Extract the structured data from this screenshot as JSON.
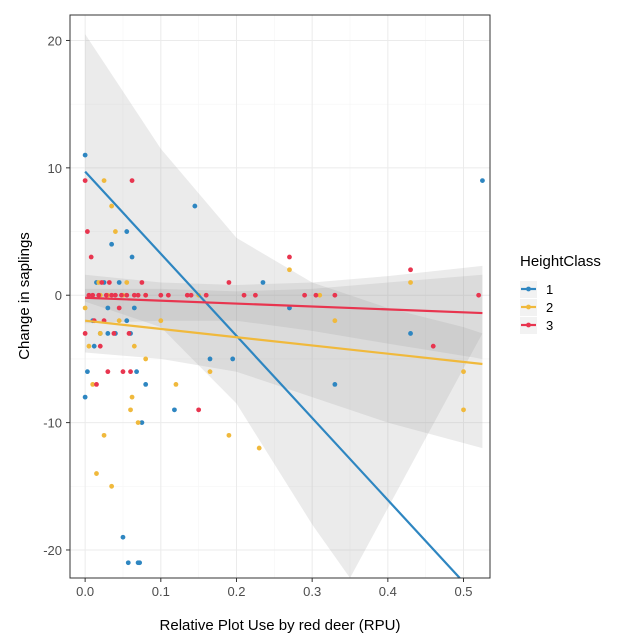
{
  "chart_data": {
    "type": "scatter",
    "title": "",
    "xlabel": "Relative Plot Use by red deer (RPU)",
    "ylabel": "Change in saplings",
    "xlim": [
      -0.02,
      0.535
    ],
    "ylim": [
      -22.2,
      22.0
    ],
    "x_ticks": [
      0.0,
      0.1,
      0.2,
      0.3,
      0.4,
      0.5
    ],
    "x_tick_labels": [
      "0.0",
      "0.1",
      "0.2",
      "0.3",
      "0.4",
      "0.5"
    ],
    "y_ticks": [
      20,
      10,
      0,
      -10,
      -20
    ],
    "y_tick_labels": [
      "20",
      "10",
      "0",
      "-10",
      "-20"
    ],
    "grid": true,
    "legend": {
      "title": "HeightClass",
      "placement": "right"
    },
    "series": [
      {
        "name": "1",
        "color": "#2e86c1",
        "points": [
          [
            0.0,
            11
          ],
          [
            0.0,
            -8
          ],
          [
            0.003,
            -6
          ],
          [
            0.01,
            -2
          ],
          [
            0.012,
            -4
          ],
          [
            0.015,
            1
          ],
          [
            0.02,
            -3
          ],
          [
            0.025,
            1
          ],
          [
            0.03,
            -1
          ],
          [
            0.03,
            -3
          ],
          [
            0.035,
            4
          ],
          [
            0.04,
            -3
          ],
          [
            0.045,
            1
          ],
          [
            0.05,
            -19
          ],
          [
            0.055,
            -2
          ],
          [
            0.055,
            5
          ],
          [
            0.057,
            -21
          ],
          [
            0.06,
            -3
          ],
          [
            0.062,
            3
          ],
          [
            0.065,
            -1
          ],
          [
            0.068,
            -6
          ],
          [
            0.07,
            -21
          ],
          [
            0.072,
            -21
          ],
          [
            0.075,
            -10
          ],
          [
            0.08,
            -7
          ],
          [
            0.118,
            -9
          ],
          [
            0.145,
            7
          ],
          [
            0.165,
            -5
          ],
          [
            0.195,
            -5
          ],
          [
            0.235,
            1
          ],
          [
            0.27,
            -1
          ],
          [
            0.33,
            -7
          ],
          [
            0.43,
            -3
          ],
          [
            0.525,
            9
          ]
        ],
        "trend": {
          "x0": 0.0,
          "y0": 9.7,
          "x1": 0.495,
          "y1": -22.2
        },
        "ci_lower": [
          [
            0.0,
            -0.5
          ],
          [
            0.1,
            -2.5
          ],
          [
            0.2,
            -8.5
          ],
          [
            0.3,
            -18
          ],
          [
            0.35,
            -22.2
          ]
        ],
        "ci_upper": [
          [
            0.0,
            20.5
          ],
          [
            0.1,
            11.5
          ],
          [
            0.2,
            4.5
          ],
          [
            0.3,
            1.0
          ],
          [
            0.4,
            -1.0
          ],
          [
            0.5,
            -2.5
          ],
          [
            0.525,
            -3.0
          ]
        ]
      },
      {
        "name": "2",
        "color": "#f0b93c",
        "points": [
          [
            0.0,
            -1
          ],
          [
            0.005,
            -4
          ],
          [
            0.01,
            -7
          ],
          [
            0.015,
            -14
          ],
          [
            0.018,
            1
          ],
          [
            0.02,
            0
          ],
          [
            0.02,
            -3
          ],
          [
            0.025,
            9
          ],
          [
            0.025,
            -11
          ],
          [
            0.03,
            0
          ],
          [
            0.035,
            7
          ],
          [
            0.035,
            -15
          ],
          [
            0.04,
            5
          ],
          [
            0.045,
            -2
          ],
          [
            0.05,
            0
          ],
          [
            0.055,
            1
          ],
          [
            0.06,
            -9
          ],
          [
            0.062,
            -8
          ],
          [
            0.065,
            -4
          ],
          [
            0.07,
            -10
          ],
          [
            0.08,
            -5
          ],
          [
            0.08,
            0
          ],
          [
            0.1,
            -2
          ],
          [
            0.12,
            -7
          ],
          [
            0.15,
            0
          ],
          [
            0.165,
            -6
          ],
          [
            0.19,
            -11
          ],
          [
            0.23,
            -12
          ],
          [
            0.27,
            2
          ],
          [
            0.31,
            0
          ],
          [
            0.33,
            -2
          ],
          [
            0.43,
            1
          ],
          [
            0.5,
            -9
          ],
          [
            0.5,
            -6
          ]
        ],
        "trend": {
          "x0": 0.0,
          "y0": -2.0,
          "x1": 0.525,
          "y1": -5.4
        },
        "ci_lower": [
          [
            0.0,
            -4.5
          ],
          [
            0.1,
            -5.0
          ],
          [
            0.2,
            -6.0
          ],
          [
            0.3,
            -8.0
          ],
          [
            0.4,
            -10.0
          ],
          [
            0.525,
            -12.0
          ]
        ],
        "ci_upper": [
          [
            0.0,
            0.5
          ],
          [
            0.1,
            0.5
          ],
          [
            0.2,
            0.3
          ],
          [
            0.3,
            0.5
          ],
          [
            0.4,
            1.0
          ],
          [
            0.525,
            1.6
          ]
        ]
      },
      {
        "name": "3",
        "color": "#e8354f",
        "points": [
          [
            0.0,
            9
          ],
          [
            0.0,
            -3
          ],
          [
            0.003,
            5
          ],
          [
            0.005,
            0
          ],
          [
            0.008,
            3
          ],
          [
            0.01,
            0
          ],
          [
            0.012,
            -2
          ],
          [
            0.015,
            -7
          ],
          [
            0.018,
            0
          ],
          [
            0.02,
            -4
          ],
          [
            0.022,
            1
          ],
          [
            0.025,
            -2
          ],
          [
            0.028,
            0
          ],
          [
            0.03,
            -6
          ],
          [
            0.032,
            1
          ],
          [
            0.035,
            0
          ],
          [
            0.038,
            -3
          ],
          [
            0.04,
            0
          ],
          [
            0.045,
            -1
          ],
          [
            0.048,
            0
          ],
          [
            0.05,
            -6
          ],
          [
            0.055,
            0
          ],
          [
            0.058,
            -3
          ],
          [
            0.06,
            -6
          ],
          [
            0.062,
            9
          ],
          [
            0.065,
            0
          ],
          [
            0.07,
            0
          ],
          [
            0.075,
            1
          ],
          [
            0.08,
            0
          ],
          [
            0.1,
            0
          ],
          [
            0.11,
            0
          ],
          [
            0.135,
            0
          ],
          [
            0.14,
            0
          ],
          [
            0.15,
            -9
          ],
          [
            0.16,
            0
          ],
          [
            0.19,
            1
          ],
          [
            0.21,
            0
          ],
          [
            0.225,
            0
          ],
          [
            0.27,
            3
          ],
          [
            0.29,
            0
          ],
          [
            0.305,
            0
          ],
          [
            0.33,
            0
          ],
          [
            0.43,
            2
          ],
          [
            0.46,
            -4
          ],
          [
            0.52,
            0
          ]
        ],
        "trend": {
          "x0": 0.0,
          "y0": -0.2,
          "x1": 0.525,
          "y1": -1.4
        },
        "ci_lower": [
          [
            0.0,
            -2.2
          ],
          [
            0.1,
            -2.0
          ],
          [
            0.2,
            -2.0
          ],
          [
            0.3,
            -2.8
          ],
          [
            0.4,
            -3.8
          ],
          [
            0.525,
            -5.0
          ]
        ],
        "ci_upper": [
          [
            0.0,
            1.6
          ],
          [
            0.1,
            1.0
          ],
          [
            0.2,
            0.8
          ],
          [
            0.3,
            1.0
          ],
          [
            0.4,
            1.5
          ],
          [
            0.525,
            2.3
          ]
        ]
      }
    ]
  }
}
